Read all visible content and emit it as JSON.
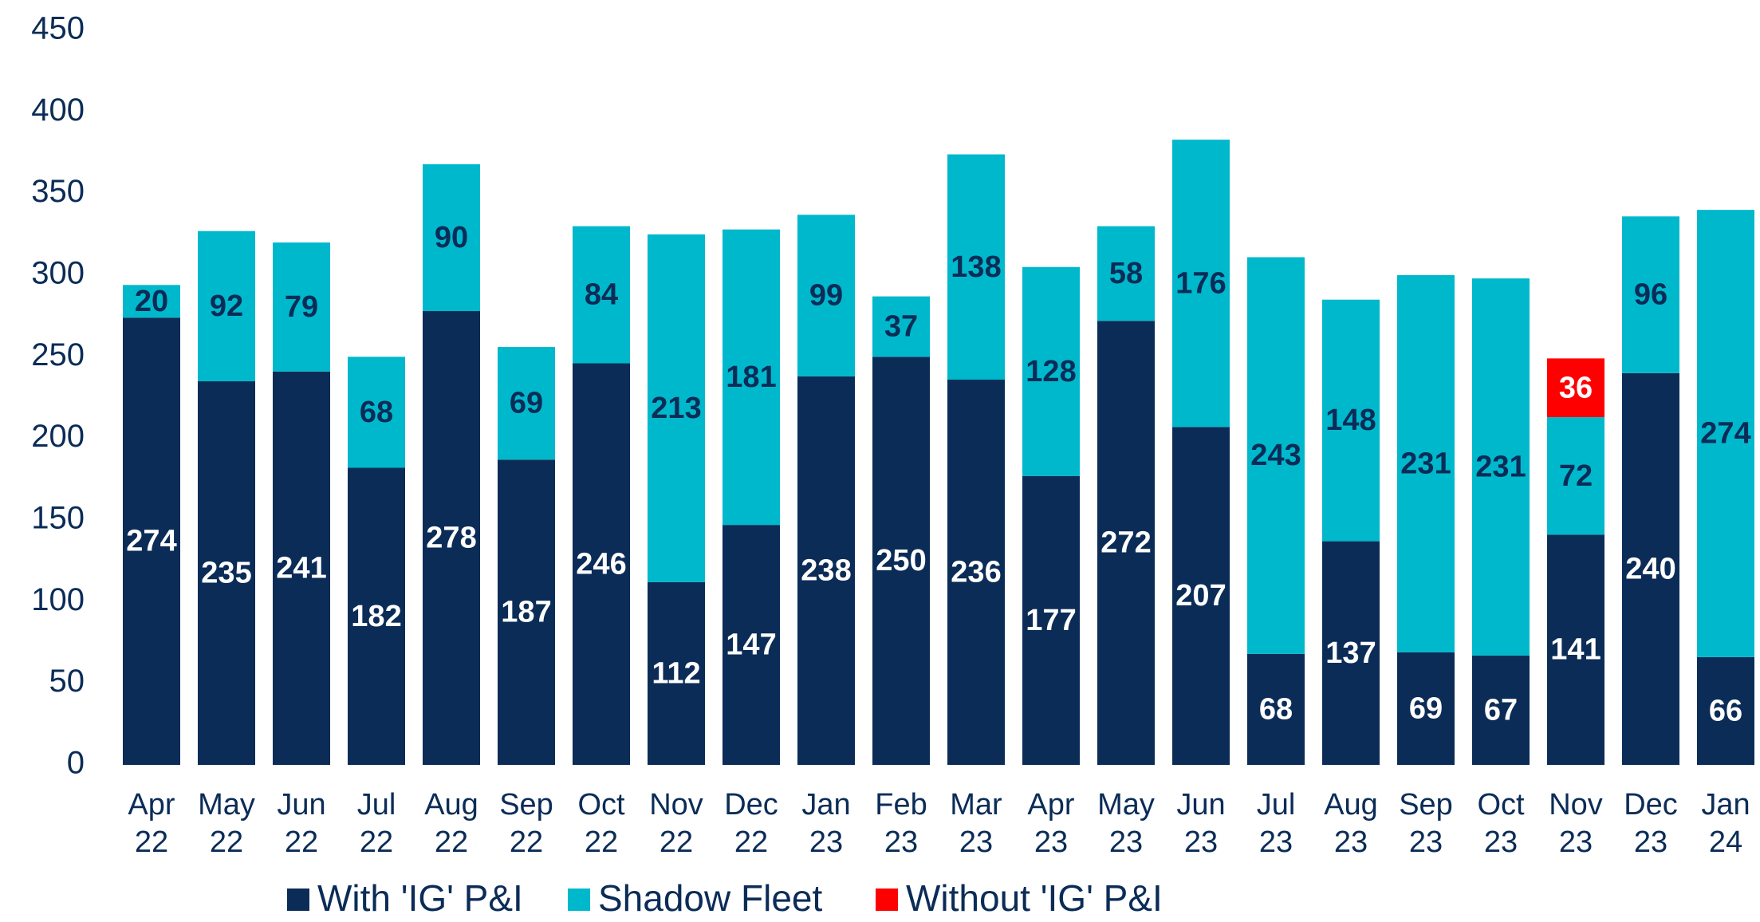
{
  "chart_data": {
    "type": "bar",
    "stacked": true,
    "categories": [
      "Apr 22",
      "May 22",
      "Jun 22",
      "Jul 22",
      "Aug 22",
      "Sep 22",
      "Oct 22",
      "Nov 22",
      "Dec 22",
      "Jan 23",
      "Feb 23",
      "Mar 23",
      "Apr 23",
      "May 23",
      "Jun 23",
      "Jul 23",
      "Aug 23",
      "Sep 23",
      "Oct 23",
      "Nov 23",
      "Dec 23",
      "Jan 24"
    ],
    "series": [
      {
        "name": "With 'IG' P&I",
        "color": "#0b2c57",
        "values": [
          274,
          235,
          241,
          182,
          278,
          187,
          246,
          112,
          147,
          238,
          250,
          236,
          177,
          272,
          207,
          68,
          137,
          69,
          67,
          141,
          240,
          66
        ]
      },
      {
        "name": "Shadow Fleet",
        "color": "#00b8cc",
        "values": [
          20,
          92,
          79,
          68,
          90,
          69,
          84,
          213,
          181,
          99,
          37,
          138,
          128,
          58,
          176,
          243,
          148,
          231,
          231,
          72,
          96,
          274
        ]
      },
      {
        "name": "Without 'IG' P&I",
        "color": "#ff0000",
        "values": [
          null,
          null,
          null,
          null,
          null,
          null,
          null,
          null,
          null,
          null,
          null,
          null,
          null,
          null,
          null,
          null,
          null,
          null,
          null,
          36,
          null,
          null
        ]
      }
    ],
    "ylim": [
      0,
      450
    ],
    "yticks": [
      0,
      50,
      100,
      150,
      200,
      250,
      300,
      350,
      400,
      450
    ],
    "grid": false,
    "legend": "bottom"
  }
}
